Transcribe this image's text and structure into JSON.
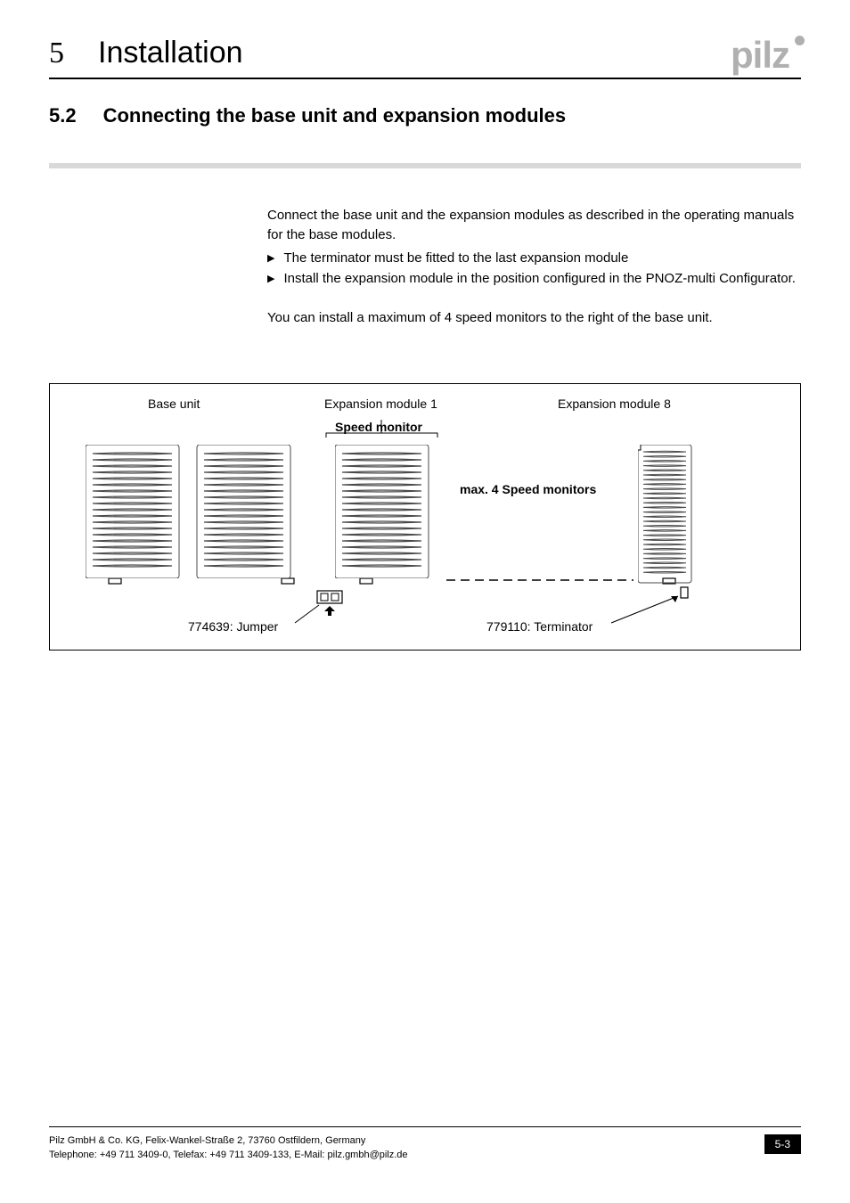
{
  "header": {
    "chapter_num": "5",
    "chapter_title": "Installation",
    "logo_text": "pilz",
    "logo_color": "#b0b0b0"
  },
  "section": {
    "num": "5.2",
    "title": "Connecting the base unit and expansion modules"
  },
  "body": {
    "intro": "Connect the base unit and the expansion modules as described in the operating manuals for the base modules.",
    "bullets": [
      "The terminator must be fitted to the last expansion module",
      "Install the expansion module in the position configured in the PNOZ-multi Configurator."
    ],
    "note": "You can install a maximum of 4 speed monitors to the right of the base unit."
  },
  "diagram": {
    "labels": {
      "base_unit": "Base unit",
      "exp1": "Expansion module 1",
      "exp8": "Expansion module 8",
      "speed_monitor": "Speed monitor",
      "max_speed": "max. 4 Speed monitors",
      "jumper": "774639: Jumper",
      "terminator": "779110: Terminator"
    },
    "colors": {
      "border": "#000000",
      "module_stroke": "#4a4a4a",
      "dash_stroke": "#000000"
    },
    "font_size_label": 14,
    "font_size_bold": 14
  },
  "footer": {
    "line1": "Pilz GmbH & Co. KG, Felix-Wankel-Straße 2, 73760 Ostfildern, Germany",
    "line2": "Telephone: +49 711 3409-0, Telefax: +49 711 3409-133, E-Mail: pilz.gmbh@pilz.de",
    "page": "5-3"
  }
}
